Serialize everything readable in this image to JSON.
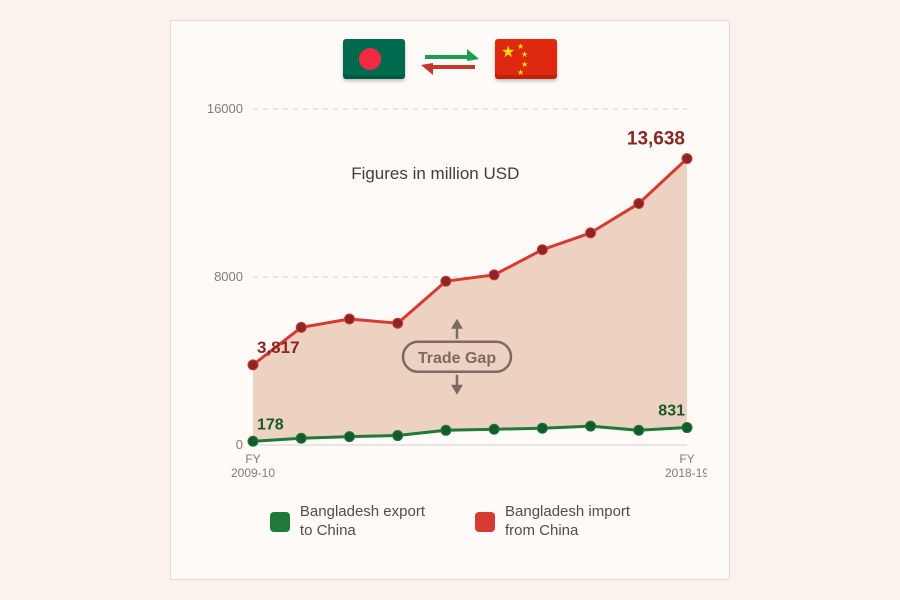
{
  "chart": {
    "type": "line-area",
    "subtitle": "Figures in million USD",
    "ylim": [
      0,
      16000
    ],
    "yticks": [
      0,
      8000,
      16000
    ],
    "xlabels_start": "FY\n2009-10",
    "xlabels_end": "FY\n2018-19",
    "n_points": 10,
    "imports": {
      "values": [
        3817,
        5600,
        6000,
        5800,
        7800,
        8100,
        9300,
        10100,
        11500,
        13638
      ],
      "start_label": "3,817",
      "end_label": "13,638",
      "color": "#d63a33",
      "marker_color": "#8a2623"
    },
    "exports": {
      "values": [
        178,
        320,
        400,
        450,
        700,
        750,
        800,
        900,
        700,
        831
      ],
      "start_label": "178",
      "end_label": "831",
      "color": "#1f7a3a",
      "marker_color": "#155a2a"
    },
    "area_fill": "#e8c4af",
    "area_opacity": 0.75,
    "grid_color": "#d8cfc9",
    "background": "#fefaf7",
    "axis_text_color": "#8a7a70",
    "trade_gap_label": "Trade Gap",
    "trade_gap_color": "#7a6a60",
    "line_width": 3,
    "marker_radius": 5
  },
  "legend": {
    "export_label": "Bangladesh export\nto China",
    "import_label": "Bangladesh import\nfrom China",
    "export_color": "#1f7a3a",
    "import_color": "#d63a33"
  },
  "flags": {
    "arrow_top_color": "#1e9e4a",
    "arrow_bottom_color": "#c0392b"
  }
}
